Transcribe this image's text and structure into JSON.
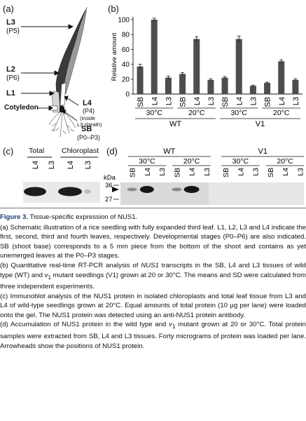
{
  "panel_a": {
    "label": "(a)",
    "leaves": [
      {
        "name": "L3",
        "stage": "(P5)"
      },
      {
        "name": "L2",
        "stage": "(P6)"
      },
      {
        "name": "L1",
        "stage": ""
      },
      {
        "name": "L4",
        "stage": "(P4)",
        "note1": "(inside",
        "note2": "L3 sheath)"
      },
      {
        "name": "Cotyledon",
        "stage": ""
      },
      {
        "name": "SB",
        "stage": "(P0–P3)"
      }
    ]
  },
  "panel_b": {
    "label": "(b)",
    "chart_data": {
      "type": "bar",
      "ylabel": "Relative amount",
      "ylim": [
        0,
        100
      ],
      "yticks": [
        0,
        20,
        40,
        60,
        80,
        100
      ],
      "categories": [
        "SB",
        "L4",
        "L3",
        "SB",
        "L4",
        "L3",
        "SB",
        "L4",
        "L3",
        "SB",
        "L4",
        "L3"
      ],
      "values": [
        37,
        100,
        22,
        27,
        74,
        19,
        22,
        74,
        11,
        15,
        44,
        19
      ],
      "errors": [
        3,
        2,
        2,
        2,
        3,
        1.5,
        1.5,
        4,
        1,
        1,
        2,
        1.5
      ],
      "temperature_groups": [
        "30°C",
        "20°C",
        "30°C",
        "20°C"
      ],
      "genotype_groups": [
        "WT",
        "V1"
      ]
    }
  },
  "panel_c": {
    "label": "(c)",
    "group1": "Total",
    "group2": "Chloroplast",
    "lanes": [
      "L4",
      "L3",
      "L4",
      "L3"
    ]
  },
  "panel_d": {
    "label": "(d)",
    "genotypes": [
      "WT",
      "V1"
    ],
    "temps": [
      "30°C",
      "20°C",
      "30°C",
      "20°C"
    ],
    "lanes": [
      "SB",
      "L4",
      "L3",
      "SB",
      "L4",
      "L3",
      "SB",
      "L4",
      "L3",
      "SB",
      "L4",
      "L3"
    ],
    "kda_label": "kDa",
    "markers": [
      "36",
      "27"
    ]
  },
  "caption": {
    "fig": "Figure 3.",
    "title": " Tissue-specific expression of NUS1.",
    "a": "(a) Schematic illustration of a rice seedling with fully expanded third leaf. L1, L2, L3 and L4 indicate the first, second, third and fourth leaves, respectively. Developmental stages (P0–P6) are also indicated. SB (shoot base) corresponds to a 5 mm piece from the bottom of the shoot and contains as yet unemerged leaves at the P0–P3 stages.",
    "b_pre": "(b) Quantitative real-time RT-PCR analysis of ",
    "b_gene": "NUS1",
    "b_mid": " transcripts in the SB, L4 and L3 tissues of wild type (WT) and ",
    "b_v": "v",
    "b_sub": "1",
    "b_post": " mutant seedlings (V1) grown at 20 or 30°C. The means and SD were calculated from three independent experiments.",
    "c": "(c) Immunoblot analysis of the NUS1 protein in isolated chloroplasts and total leaf tissue from L3 and L4 of wild-type seedlings grown at 20°C. Equal amounts of total protein (10 µg per lane) were loaded onto the gel. The NUS1 protein was detected using an anti-NUS1 protein antibody.",
    "d_pre": "(d) Accumulation of NUS1 protein in the wild type and ",
    "d_v": "v",
    "d_sub": "1",
    "d_post": " mutant grown at 20 or 30°C. Total protein samples were extracted from SB, L4 and L3 tissues. Forty micrograms of protein was loaded per lane. Arrowheads show the positions of NUS1 protein."
  }
}
